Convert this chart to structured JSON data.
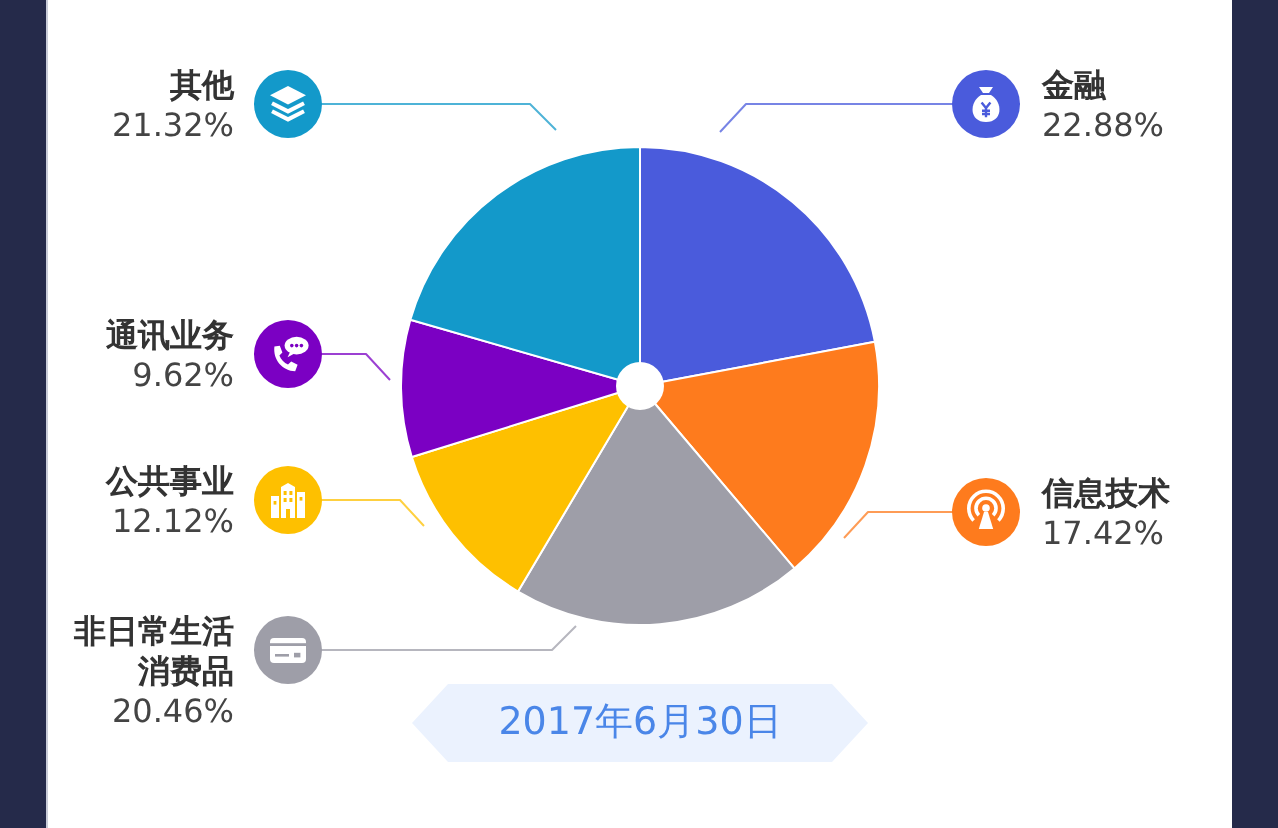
{
  "chart_data": {
    "type": "pie",
    "categories": [
      "金融",
      "信息技术",
      "非日常生活消费品",
      "公共事业",
      "通讯业务",
      "其他"
    ],
    "values": [
      22.88,
      17.42,
      20.46,
      12.12,
      9.62,
      21.32
    ],
    "colors": [
      "#4a5bdc",
      "#fe7b1d",
      "#9e9ea8",
      "#fec000",
      "#7b00c3",
      "#1399ca"
    ],
    "value_labels": [
      "22.88%",
      "17.42%",
      "20.46%",
      "12.12%",
      "9.62%",
      "21.32%"
    ],
    "legend": "left",
    "annotations": [
      "2017年6月30日"
    ]
  }
}
